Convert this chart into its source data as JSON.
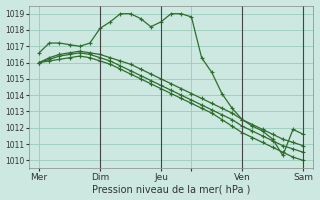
{
  "title": "",
  "xlabel": "Pression niveau de la mer( hPa )",
  "bg_color": "#cce8e0",
  "grid_color": "#99ccbb",
  "line_color": "#2d6e2d",
  "ylim": [
    1009.5,
    1019.5
  ],
  "yticks": [
    1010,
    1011,
    1012,
    1013,
    1014,
    1015,
    1016,
    1017,
    1018,
    1019
  ],
  "xlim": [
    0,
    28
  ],
  "xtick_positions": [
    1,
    7,
    13,
    16,
    21,
    27
  ],
  "xtick_labels": [
    "Mer",
    "Dim",
    "Jeu",
    "",
    "Ven",
    "Sam"
  ],
  "vline_positions": [
    7,
    13,
    21,
    27
  ],
  "series": [
    {
      "x": [
        1,
        2,
        3,
        4,
        5,
        6,
        7,
        8,
        9,
        10,
        11,
        12,
        13,
        14,
        15,
        16,
        17,
        18,
        19,
        20,
        21,
        22,
        23,
        24,
        25,
        26,
        27
      ],
      "y": [
        1016.6,
        1017.2,
        1017.2,
        1017.1,
        1017.0,
        1017.2,
        1018.1,
        1018.5,
        1019.0,
        1019.0,
        1018.7,
        1018.2,
        1018.5,
        1019.0,
        1019.0,
        1018.8,
        1016.3,
        1015.4,
        1014.1,
        1013.2,
        1012.5,
        1012.1,
        1011.8,
        1011.3,
        1010.3,
        1011.9,
        1011.6
      ]
    },
    {
      "x": [
        1,
        2,
        3,
        4,
        5,
        6,
        7,
        8,
        9,
        10,
        11,
        12,
        13,
        14,
        15,
        16,
        17,
        18,
        19,
        20,
        21,
        22,
        23,
        24,
        25,
        26,
        27
      ],
      "y": [
        1016.0,
        1016.3,
        1016.5,
        1016.6,
        1016.7,
        1016.6,
        1016.5,
        1016.3,
        1016.1,
        1015.9,
        1015.6,
        1015.3,
        1015.0,
        1014.7,
        1014.4,
        1014.1,
        1013.8,
        1013.5,
        1013.2,
        1012.9,
        1012.5,
        1012.2,
        1011.9,
        1011.6,
        1011.3,
        1011.1,
        1010.9
      ]
    },
    {
      "x": [
        1,
        2,
        3,
        4,
        5,
        6,
        7,
        8,
        9,
        10,
        11,
        12,
        13,
        14,
        15,
        16,
        17,
        18,
        19,
        20,
        21,
        22,
        23,
        24,
        25,
        26,
        27
      ],
      "y": [
        1016.0,
        1016.2,
        1016.4,
        1016.5,
        1016.6,
        1016.5,
        1016.3,
        1016.1,
        1015.8,
        1015.5,
        1015.2,
        1014.9,
        1014.6,
        1014.3,
        1014.0,
        1013.7,
        1013.4,
        1013.1,
        1012.8,
        1012.5,
        1012.1,
        1011.8,
        1011.5,
        1011.2,
        1010.9,
        1010.7,
        1010.5
      ]
    },
    {
      "x": [
        1,
        2,
        3,
        4,
        5,
        6,
        7,
        8,
        9,
        10,
        11,
        12,
        13,
        14,
        15,
        16,
        17,
        18,
        19,
        20,
        21,
        22,
        23,
        24,
        25,
        26,
        27
      ],
      "y": [
        1016.0,
        1016.1,
        1016.2,
        1016.3,
        1016.4,
        1016.3,
        1016.1,
        1015.9,
        1015.6,
        1015.3,
        1015.0,
        1014.7,
        1014.4,
        1014.1,
        1013.8,
        1013.5,
        1013.2,
        1012.9,
        1012.5,
        1012.1,
        1011.7,
        1011.4,
        1011.1,
        1010.8,
        1010.5,
        1010.2,
        1010.0
      ]
    }
  ],
  "marker": "+",
  "marker_size": 3.5,
  "linewidth": 0.9,
  "xlabel_fontsize": 7,
  "ytick_fontsize": 5.5,
  "xtick_fontsize": 6.5
}
